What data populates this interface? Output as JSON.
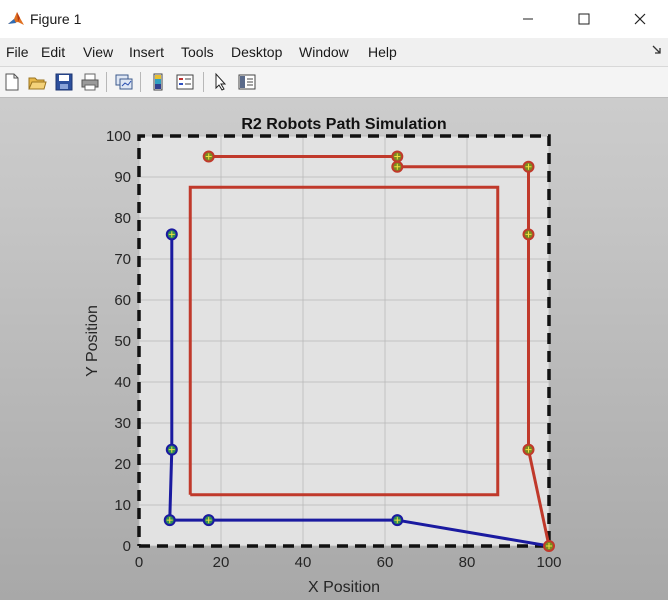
{
  "window": {
    "title": "Figure 1",
    "icon": "matlab-logo-icon",
    "controls": [
      "minimize-icon",
      "maximize-icon",
      "close-icon"
    ]
  },
  "menu": [
    "File",
    "Edit",
    "View",
    "Insert",
    "Tools",
    "Desktop",
    "Window",
    "Help"
  ],
  "toolbar": [
    "new-figure-icon",
    "open-file-icon",
    "save-icon",
    "print-icon",
    "link-plot-icon",
    "insert-colorbar-icon",
    "insert-legend-icon",
    "edit-plot-arrow-icon",
    "property-inspector-icon"
  ],
  "chart_data": {
    "type": "line",
    "title": "R2 Robots Path Simulation",
    "xlabel": "X Position",
    "ylabel": "Y Position",
    "xlim": [
      0,
      100
    ],
    "ylim": [
      0,
      100
    ],
    "xticks": [
      0,
      20,
      40,
      60,
      80,
      100
    ],
    "yticks": [
      0,
      10,
      20,
      30,
      40,
      50,
      60,
      70,
      80,
      90,
      100
    ],
    "grid": true,
    "boundary": {
      "x": [
        0,
        100,
        100,
        0,
        0
      ],
      "y": [
        0,
        0,
        100,
        100,
        0
      ],
      "color": "#111111",
      "style": "dashed"
    },
    "obstacle": {
      "x": [
        12.5,
        87.5,
        87.5,
        12.5,
        12.5
      ],
      "y": [
        12.5,
        12.5,
        87.5,
        87.5,
        12.5
      ],
      "color": "#c0392b"
    },
    "series": [
      {
        "color": "#1a1aa0",
        "x": [
          100,
          63,
          17,
          7.5,
          8,
          8
        ],
        "y": [
          0,
          6.3,
          6.3,
          6.3,
          23.5,
          76
        ],
        "waypoints": [
          [
            63,
            6.3
          ],
          [
            17,
            6.3
          ],
          [
            7.5,
            6.3
          ],
          [
            8,
            23.5
          ],
          [
            8,
            76
          ]
        ],
        "waypoint_color": "#2e8b57"
      },
      {
        "color": "#c0392b",
        "x": [
          100,
          95,
          95,
          95,
          63,
          63,
          17
        ],
        "y": [
          0,
          23.5,
          76,
          92.5,
          92.5,
          95,
          95
        ],
        "waypoints": [
          [
            100,
            0
          ],
          [
            95,
            23.5
          ],
          [
            95,
            76
          ],
          [
            95,
            92.5
          ],
          [
            63,
            92.5
          ],
          [
            63,
            95
          ],
          [
            17,
            95
          ]
        ],
        "waypoint_color": "#7c8a20"
      }
    ]
  },
  "colors": {
    "axes_bg": "#e2e2e2",
    "grid": "#b9b9b9",
    "text": "#262626"
  }
}
